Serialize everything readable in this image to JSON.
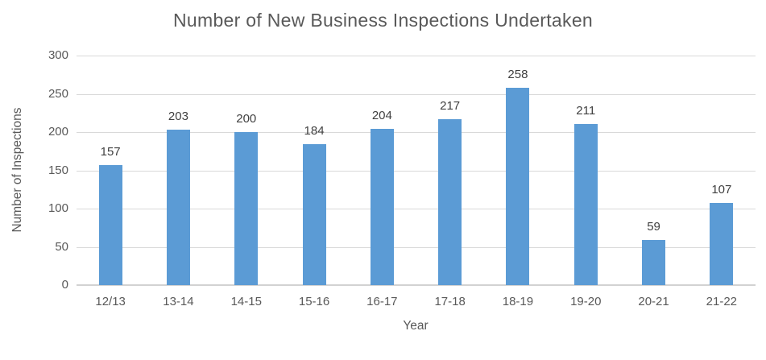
{
  "chart_data": {
    "type": "bar",
    "title": "Number of New Business Inspections Undertaken",
    "xlabel": "Year",
    "ylabel": "Number of Inspections",
    "categories": [
      "12/13",
      "13-14",
      "14-15",
      "15-16",
      "16-17",
      "17-18",
      "18-19",
      "19-20",
      "20-21",
      "21-22"
    ],
    "values": [
      157,
      203,
      200,
      184,
      204,
      217,
      258,
      211,
      59,
      107
    ],
    "ylim": [
      0,
      300
    ],
    "yticks": [
      0,
      50,
      100,
      150,
      200,
      250,
      300
    ],
    "grid": "horizontal",
    "legend": "none",
    "data_labels": true,
    "colors": {
      "bar": "#5B9BD5",
      "gridline": "#D9D9D9",
      "axis_line": "#D2D2D2",
      "title_text": "#595959",
      "axis_title_text": "#595959",
      "tick_text": "#595959",
      "data_label_text": "#404040"
    }
  }
}
